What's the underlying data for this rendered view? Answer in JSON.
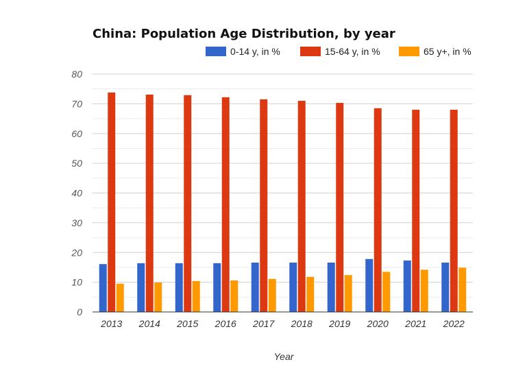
{
  "chart_data": {
    "type": "bar",
    "title": "China: Population Age Distribution, by year",
    "xlabel": "Year",
    "ylabel": "",
    "ylim": [
      0,
      80
    ],
    "yticks": [
      0,
      10,
      20,
      30,
      40,
      50,
      60,
      70,
      80
    ],
    "grid": true,
    "legend": "top-right",
    "categories": [
      "2013",
      "2014",
      "2015",
      "2016",
      "2017",
      "2018",
      "2019",
      "2020",
      "2021",
      "2022"
    ],
    "series": [
      {
        "name": "0-14 y, in %",
        "color": "#3366cc",
        "values": [
          16.1,
          16.4,
          16.4,
          16.4,
          16.6,
          16.6,
          16.6,
          17.8,
          17.3,
          16.6
        ]
      },
      {
        "name": "15-64 y, in %",
        "color": "#dc3912",
        "values": [
          73.8,
          73.1,
          72.9,
          72.2,
          71.5,
          71.0,
          70.3,
          68.5,
          68.0,
          68.0
        ]
      },
      {
        "name": "65 y+, in %",
        "color": "#ff9900",
        "values": [
          9.5,
          9.9,
          10.4,
          10.6,
          11.1,
          11.8,
          12.4,
          13.5,
          14.2,
          14.9
        ]
      }
    ]
  }
}
